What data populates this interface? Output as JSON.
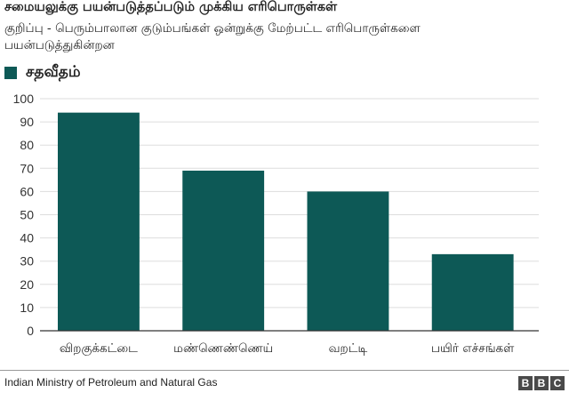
{
  "title": "சமையலுக்கு பயன்படுத்தப்படும் முக்கிய எரிபொருள்கள்",
  "note": "குறிப்பு - பெரும்பாலான குடும்பங்கள் ஒன்றுக்கு மேற்பட்ட எரிபொருள்களை பயன்படுத்துகின்றன",
  "source": "Indian Ministry of Petroleum and Natural Gas",
  "logo": [
    "B",
    "B",
    "C"
  ],
  "colors": {
    "bar": "#0d5956",
    "grid": "#dddddd",
    "axis": "#333333"
  },
  "chart_data": {
    "type": "bar",
    "categories": [
      "விறகுக்கட்டை",
      "மண்ணெண்ணெய்",
      "வறட்டி",
      "பயிர் எச்சங்கள்"
    ],
    "series": [
      {
        "name": "சதவீதம்",
        "values": [
          94,
          69,
          60,
          33
        ]
      }
    ],
    "ylim": [
      0,
      100
    ],
    "yticks": [
      0,
      10,
      20,
      30,
      40,
      50,
      60,
      70,
      80,
      90,
      100
    ],
    "grid": true,
    "legend": "top-left"
  }
}
